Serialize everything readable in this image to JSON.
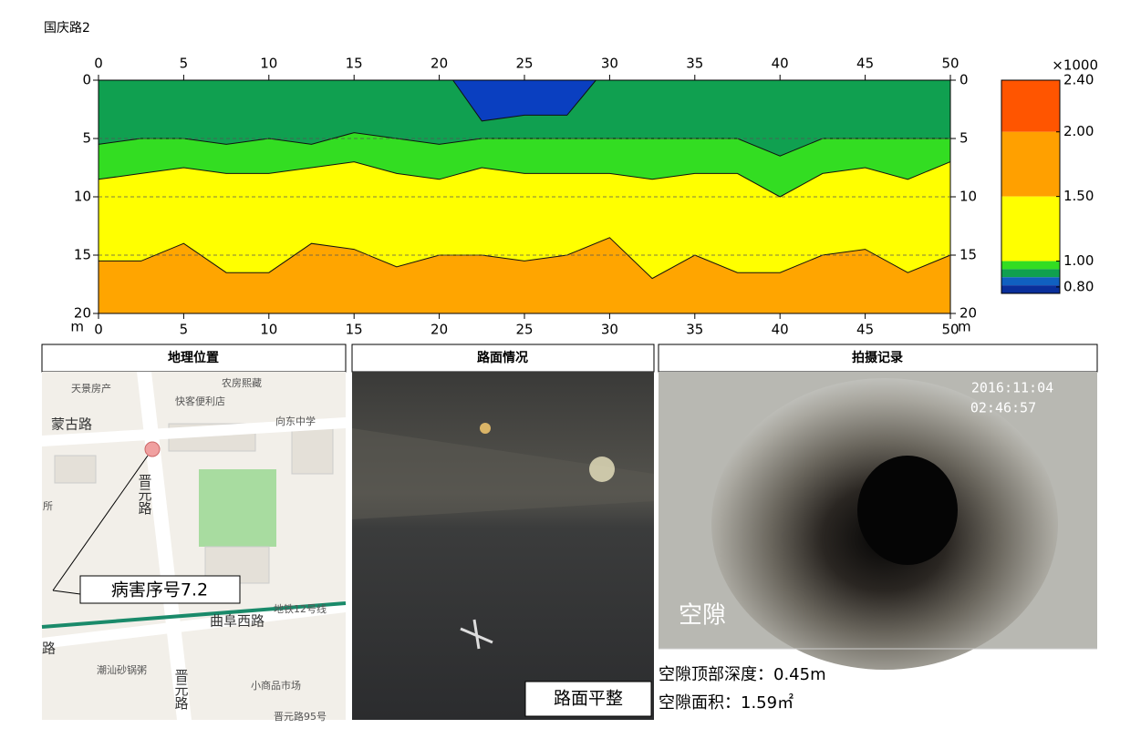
{
  "chart_data": {
    "type": "contour",
    "title": "国庆路2",
    "axis_unit": "m",
    "x": [
      0,
      2.5,
      5,
      7.5,
      10,
      12.5,
      15,
      17.5,
      20,
      22.5,
      25,
      27.5,
      30,
      32.5,
      35,
      37.5,
      40,
      42.5,
      45,
      47.5,
      50
    ],
    "color": "#10a050",
    "anomaly": {
      "color": "#0a3fc0",
      "values": [
        null,
        null,
        null,
        null,
        null,
        null,
        null,
        null,
        null,
        3.5,
        3,
        3,
        null,
        null,
        null,
        null,
        null,
        null,
        null,
        null,
        null
      ]
    },
    "series": [
      {
        "color": "#33dd22",
        "values": [
          5.5,
          5,
          5,
          5.5,
          5,
          5.5,
          4.5,
          5,
          5.5,
          5,
          5,
          5,
          5,
          5,
          5,
          5,
          6.5,
          5,
          5,
          5,
          5
        ]
      },
      {
        "color": "#ffff00",
        "values": [
          8.5,
          8,
          7.5,
          8,
          8,
          7.5,
          7,
          8,
          8.5,
          7.5,
          8,
          8,
          8,
          8.5,
          8,
          8,
          10,
          8,
          7.5,
          8.5,
          7
        ]
      },
      {
        "color": "#ffa500",
        "values": [
          15.5,
          15.5,
          14,
          16.5,
          16.5,
          14,
          14.5,
          16,
          15,
          15,
          15.5,
          15,
          13.5,
          17,
          15,
          16.5,
          16.5,
          15,
          14.5,
          16.5,
          15
        ]
      }
    ],
    "xlim": [
      0,
      50
    ],
    "xticks": [
      0,
      5,
      10,
      15,
      20,
      25,
      30,
      35,
      40,
      45,
      50
    ],
    "ylim": [
      0,
      20
    ],
    "y_inverted": true,
    "yticks": [
      0,
      5,
      10,
      15,
      20
    ],
    "grid": true,
    "colorbar": {
      "label": "×1000",
      "clim": [
        0.75,
        2.4
      ],
      "ticks": [
        {
          "value": 0.8,
          "label": "0.80"
        },
        {
          "value": 1,
          "label": "1.00"
        },
        {
          "value": 1.5,
          "label": "1.50"
        },
        {
          "value": 2,
          "label": "2.00"
        },
        {
          "value": 2.4,
          "label": "2.40"
        }
      ],
      "colors": [
        "#ff5500",
        "#ffa000",
        "#ffff00",
        "#33dd22",
        "#10a050",
        "#1060c0",
        "#0a2f9a"
      ]
    }
  },
  "panels": {
    "map": {
      "header": "地理位置",
      "labels": [
        "天景房产",
        "农房熙藏",
        "快客便利店",
        "蒙古路",
        "向东中学",
        "晋元路",
        "所",
        "曲阜西路",
        "地铁12号线",
        "路",
        "潮汕砂锅粥",
        "晋元路",
        "小商品市场",
        "晋元路95号"
      ],
      "callout": "病害序号7.2"
    },
    "road": {
      "header": "路面情况",
      "caption": "路面平整"
    },
    "photo": {
      "header": "拍摄记录",
      "date": "2016:11:04",
      "time": "02:46:57",
      "label": "空隙",
      "notes": [
        "空隙顶部深度：0.45m",
        "空隙面积：1.59㎡"
      ]
    }
  }
}
